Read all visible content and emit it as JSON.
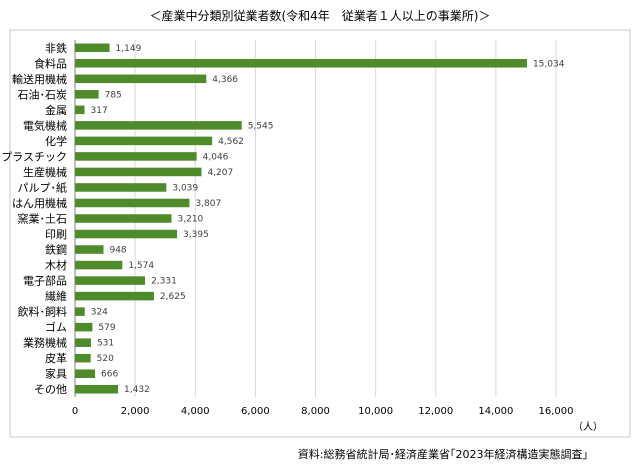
{
  "chart_data": {
    "type": "bar",
    "orientation": "horizontal",
    "title": "＜産業中分類別従業者数(令和4年　従業者１人以上の事業所)＞",
    "categories": [
      "非鉄",
      "食料品",
      "輸送用機械",
      "石油･石炭",
      "金属",
      "電気機械",
      "化学",
      "プラスチック",
      "生産機械",
      "パルプ･紙",
      "はん用機械",
      "窯業･土石",
      "印刷",
      "鉄鋼",
      "木材",
      "電子部品",
      "繊維",
      "飲料･飼料",
      "ゴム",
      "業務機械",
      "皮革",
      "家具",
      "その他"
    ],
    "values": [
      1149,
      15034,
      4366,
      785,
      317,
      5545,
      4562,
      4046,
      4207,
      3039,
      3807,
      3210,
      3395,
      948,
      1574,
      2331,
      2625,
      324,
      579,
      531,
      520,
      666,
      1432
    ],
    "value_labels": [
      "1,149",
      "15,034",
      "4,366",
      "785",
      "317",
      "5,545",
      "4,562",
      "4,046",
      "4,207",
      "3,039",
      "3,807",
      "3,210",
      "3,395",
      "948",
      "1,574",
      "2,331",
      "2,625",
      "324",
      "579",
      "531",
      "520",
      "666",
      "1,432"
    ],
    "xlim": [
      0,
      16000
    ],
    "x_ticks": [
      0,
      2000,
      4000,
      6000,
      8000,
      10000,
      12000,
      14000,
      16000
    ],
    "x_tick_labels": [
      "0",
      "2,000",
      "4,000",
      "6,000",
      "8,000",
      "10,000",
      "12,000",
      "14,000",
      "16,000"
    ],
    "xlabel": "（人）",
    "grid": true,
    "bar_color": "#4f8a2b",
    "source_note": "資料:総務省統計局･経済産業省｢2023年経済構造実態調査｣"
  }
}
